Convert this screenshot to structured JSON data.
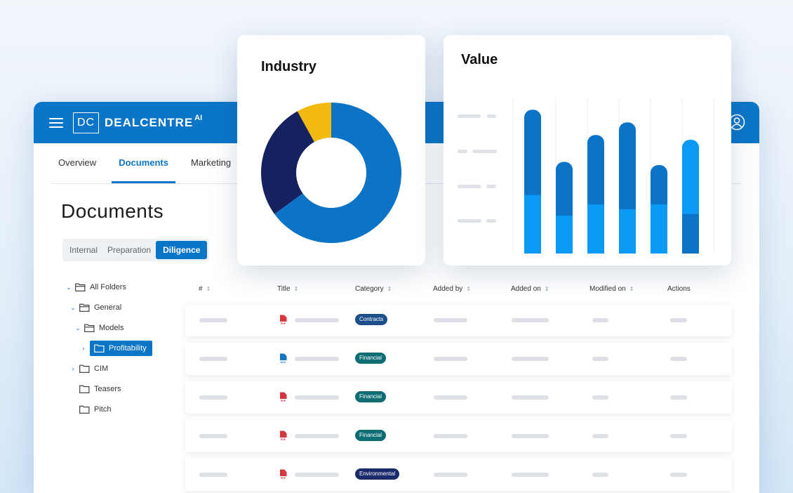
{
  "app": {
    "brand": {
      "badge": "DC",
      "name": "DEALCENTRE",
      "suffix": "AI"
    },
    "tabs": [
      "Overview",
      "Documents",
      "Marketing"
    ],
    "active_tab": "Documents",
    "page_title": "Documents",
    "segments": [
      "Internal",
      "Preparation",
      "Diligence"
    ],
    "active_segment": "Diligence"
  },
  "tree": [
    {
      "label": "All Folders",
      "chevron": "down"
    },
    {
      "label": "General",
      "chevron": "down"
    },
    {
      "label": "Models",
      "chevron": "down"
    },
    {
      "label": "Profitability",
      "chevron": "right",
      "selected": true
    },
    {
      "label": "CIM",
      "chevron": "right"
    },
    {
      "label": "Teasers",
      "chevron": ""
    },
    {
      "label": "Pitch",
      "chevron": ""
    }
  ],
  "table": {
    "columns": [
      "#",
      "Title",
      "Category",
      "Added by",
      "Added on",
      "Modified on",
      "Actions"
    ],
    "rows": [
      {
        "file_type": "PDF",
        "category": "Contracts"
      },
      {
        "file_type": "DOC",
        "category": "Financial"
      },
      {
        "file_type": "PDF",
        "category": "Financial"
      },
      {
        "file_type": "PDF",
        "category": "Financial"
      },
      {
        "file_type": "PDF",
        "category": "Environmental"
      }
    ]
  },
  "colors": {
    "brand_blue": "#0b76c8",
    "contracts_badge": "#1b4f8a",
    "financial_badge": "#0f6e74",
    "environmental_badge": "#1a2a6b",
    "pdf_icon": "#d4373f",
    "doc_icon": "#1576c4"
  },
  "industry_card": {
    "title": "Industry"
  },
  "value_card": {
    "title": "Value"
  },
  "chart_data": [
    {
      "type": "pie",
      "title": "Industry",
      "slices": [
        {
          "value": 65,
          "color": "#0b74c7"
        },
        {
          "value": 27,
          "color": "#16225f"
        },
        {
          "value": 8,
          "color": "#f2b90f"
        }
      ]
    },
    {
      "type": "bar",
      "title": "Value",
      "stacked": true,
      "bars": [
        {
          "bottom": 37,
          "top": 54,
          "top_color": "#0b74c7",
          "bottom_color": "#0a9af5"
        },
        {
          "bottom": 24,
          "top": 34,
          "top_color": "#0b74c7",
          "bottom_color": "#0a9af5"
        },
        {
          "bottom": 31,
          "top": 44,
          "top_color": "#0b74c7",
          "bottom_color": "#0a9af5"
        },
        {
          "bottom": 28,
          "top": 55,
          "top_color": "#0b74c7",
          "bottom_color": "#0a9af5"
        },
        {
          "bottom": 31,
          "top": 25,
          "top_color": "#0b74c7",
          "bottom_color": "#0a9af5"
        },
        {
          "bottom": 25,
          "top": 47,
          "top_color": "#0a9af5",
          "bottom_color": "#0b74c7"
        }
      ],
      "ylim": [
        0,
        100
      ]
    }
  ]
}
